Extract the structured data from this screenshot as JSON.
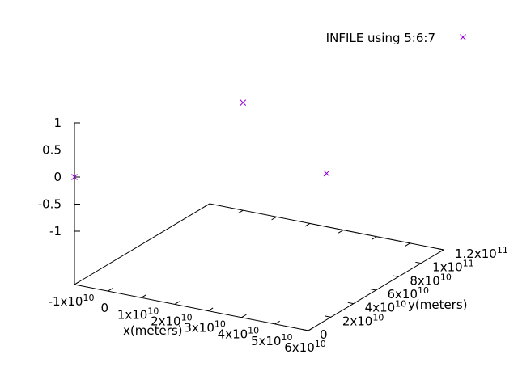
{
  "chart_data": {
    "type": "scatter",
    "title": "",
    "legend": {
      "label": "INFILE using 5:6:7",
      "position": "top-right",
      "marker": "x",
      "color": "#9400d3"
    },
    "xlabel": "x(meters)",
    "ylabel": "y(meters)",
    "zlabel": "",
    "xlim": [
      -10000000000.0,
      60000000000.0
    ],
    "ylim": [
      0,
      120000000000.0
    ],
    "zlim": [
      -1,
      1
    ],
    "grid": false,
    "x_ticks": [
      {
        "value": -10000000000.0,
        "mantissa": "-1x10",
        "exp": "10"
      },
      {
        "value": 0,
        "mantissa": "0",
        "exp": ""
      },
      {
        "value": 10000000000.0,
        "mantissa": "1x10",
        "exp": "10"
      },
      {
        "value": 20000000000.0,
        "mantissa": "2x10",
        "exp": "10"
      },
      {
        "value": 30000000000.0,
        "mantissa": "3x10",
        "exp": "10"
      },
      {
        "value": 40000000000.0,
        "mantissa": "4x10",
        "exp": "10"
      },
      {
        "value": 50000000000.0,
        "mantissa": "5x10",
        "exp": "10"
      },
      {
        "value": 60000000000.0,
        "mantissa": "6x10",
        "exp": "10"
      }
    ],
    "y_ticks": [
      {
        "value": 0,
        "mantissa": "0",
        "exp": ""
      },
      {
        "value": 20000000000.0,
        "mantissa": "2x10",
        "exp": "10"
      },
      {
        "value": 40000000000.0,
        "mantissa": "4x10",
        "exp": "10"
      },
      {
        "value": 60000000000.0,
        "mantissa": "6x10",
        "exp": "10"
      },
      {
        "value": 80000000000.0,
        "mantissa": "8x10",
        "exp": "10"
      },
      {
        "value": 100000000000.0,
        "mantissa": "1x10",
        "exp": "11"
      },
      {
        "value": 120000000000.0,
        "mantissa": "1.2x10",
        "exp": "11"
      }
    ],
    "z_ticks": [
      {
        "value": 1,
        "label": "1"
      },
      {
        "value": 0.5,
        "label": "0.5"
      },
      {
        "value": 0,
        "label": "0"
      },
      {
        "value": -0.5,
        "label": "-0.5"
      },
      {
        "value": -1,
        "label": "-1"
      }
    ],
    "series": [
      {
        "name": "INFILE using 5:6:7",
        "points": [
          {
            "x": -10000000000.0,
            "y": 0,
            "z": 0
          },
          {
            "x": 0,
            "y": 120000000000.0,
            "z": 0
          },
          {
            "x": 25000000000.0,
            "y": 120000000000.0,
            "z": -1
          }
        ]
      }
    ]
  }
}
